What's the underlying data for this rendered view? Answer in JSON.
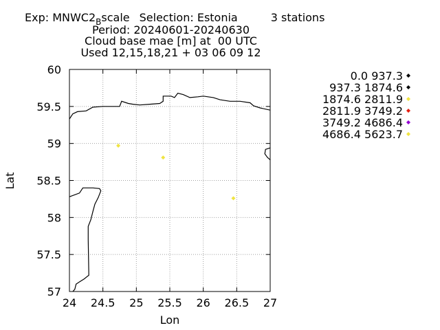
{
  "header": {
    "line1": {
      "exp": "Exp: MNWC2",
      "sub": "B",
      "rest": "scale",
      "selection": "Selection: Estonia",
      "stations": "3 stations"
    },
    "line2": "Period: 20240601-20240630",
    "line3": "Cloud base mae [m] at  00 UTC",
    "line4": "Used 12,15,18,21 + 03 06 09 12"
  },
  "chart_data": {
    "type": "scatter",
    "xlabel": "Lon",
    "ylabel": "Lat",
    "xlim": [
      24,
      27
    ],
    "ylim": [
      57,
      60
    ],
    "xticks": [
      "24",
      "24.5",
      "25",
      "25.5",
      "26",
      "26.5",
      "27"
    ],
    "yticks": [
      "57",
      "57.5",
      "58",
      "58.5",
      "59",
      "59.5",
      "60"
    ],
    "grid": true,
    "legend_position": "right",
    "legend": [
      {
        "label": "0.0 937.3",
        "color": "#000000"
      },
      {
        "label": "937.3 1874.6",
        "color": "#000000"
      },
      {
        "label": "1874.6 2811.9",
        "color": "#f0e442"
      },
      {
        "label": "2811.9 3749.2",
        "color": "#e51e10"
      },
      {
        "label": "3749.2 4686.4",
        "color": "#9400d3"
      },
      {
        "label": "4686.4 5623.7",
        "color": "#f0e442"
      }
    ],
    "points": [
      {
        "lon": 24.73,
        "lat": 58.97,
        "color": "#f0e442"
      },
      {
        "lon": 25.4,
        "lat": 58.81,
        "color": "#f0e442"
      },
      {
        "lon": 26.45,
        "lat": 58.26,
        "color": "#f0e442"
      }
    ],
    "coastlines": [
      [
        [
          24.0,
          59.33
        ],
        [
          24.05,
          59.4
        ],
        [
          24.12,
          59.43
        ],
        [
          24.25,
          59.44
        ],
        [
          24.35,
          59.49
        ],
        [
          24.5,
          59.5
        ],
        [
          24.65,
          59.5
        ],
        [
          24.75,
          59.5
        ],
        [
          24.78,
          59.57
        ],
        [
          24.88,
          59.54
        ],
        [
          24.95,
          59.53
        ],
        [
          25.05,
          59.52
        ],
        [
          25.2,
          59.53
        ],
        [
          25.35,
          59.54
        ],
        [
          25.4,
          59.57
        ],
        [
          25.4,
          59.64
        ],
        [
          25.52,
          59.64
        ],
        [
          25.57,
          59.62
        ],
        [
          25.62,
          59.68
        ],
        [
          25.7,
          59.66
        ],
        [
          25.8,
          59.62
        ],
        [
          25.92,
          59.63
        ],
        [
          26.0,
          59.64
        ],
        [
          26.15,
          59.62
        ],
        [
          26.25,
          59.59
        ],
        [
          26.4,
          59.57
        ],
        [
          26.55,
          59.57
        ],
        [
          26.7,
          59.55
        ],
        [
          26.75,
          59.51
        ],
        [
          26.85,
          59.48
        ],
        [
          27.0,
          59.45
        ]
      ],
      [
        [
          27.0,
          58.94
        ],
        [
          26.93,
          58.92
        ],
        [
          26.92,
          58.86
        ],
        [
          26.96,
          58.81
        ],
        [
          27.0,
          58.78
        ]
      ],
      [
        [
          24.0,
          58.28
        ],
        [
          24.15,
          58.33
        ],
        [
          24.2,
          58.4
        ],
        [
          24.35,
          58.4
        ],
        [
          24.45,
          58.39
        ],
        [
          24.47,
          58.36
        ],
        [
          24.43,
          58.27
        ],
        [
          24.38,
          58.18
        ],
        [
          24.35,
          58.08
        ],
        [
          24.32,
          57.97
        ],
        [
          24.28,
          57.88
        ],
        [
          24.28,
          57.7
        ],
        [
          24.29,
          57.22
        ],
        [
          24.22,
          57.17
        ],
        [
          24.15,
          57.13
        ],
        [
          24.1,
          57.1
        ],
        [
          24.08,
          57.03
        ],
        [
          24.05,
          57.0
        ]
      ]
    ]
  }
}
